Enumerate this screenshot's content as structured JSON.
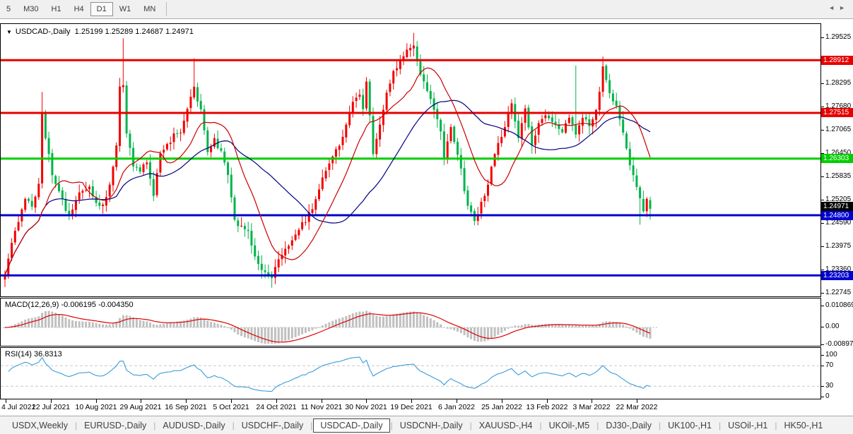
{
  "toolbar": {
    "timeframes": [
      {
        "label": "5",
        "active": false
      },
      {
        "label": "M30",
        "active": false
      },
      {
        "label": "H1",
        "active": false
      },
      {
        "label": "H4",
        "active": false
      },
      {
        "label": "D1",
        "active": true
      },
      {
        "label": "W1",
        "active": false
      },
      {
        "label": "MN",
        "active": false
      }
    ]
  },
  "window": {
    "dropdown_icon": "▼",
    "title_symbol": "USDCAD-,Daily",
    "title_ohlc": "1.25199 1.25289 1.24687 1.24971"
  },
  "chart_data": {
    "type": "candlestick",
    "symbol": "USDCAD-",
    "timeframe": "Daily",
    "current_bar": {
      "open": 1.25199,
      "high": 1.25289,
      "low": 1.24687,
      "close": 1.24971
    },
    "up_color": "#F20000",
    "down_color": "#00B44A",
    "price_axis": {
      "ticks": [
        "1.29525",
        "1.28295",
        "1.27680",
        "1.27065",
        "1.26450",
        "1.25835",
        "1.25205",
        "1.24590",
        "1.23975",
        "1.23360",
        "1.22745"
      ],
      "highlight_labels": [
        {
          "text": "1.28912",
          "price": 1.28912,
          "bg": "#E60000",
          "current": false
        },
        {
          "text": "1.27515",
          "price": 1.27515,
          "bg": "#E60000",
          "current": false
        },
        {
          "text": "1.26303",
          "price": 1.26303,
          "bg": "#00CE00",
          "current": false
        },
        {
          "text": "1.24971",
          "price": 1.24971,
          "bg": "#000000",
          "current": true
        },
        {
          "text": "1.24800",
          "price": 1.248,
          "bg": "#0000CE",
          "current": false
        },
        {
          "text": "1.23203",
          "price": 1.23203,
          "bg": "#0000CE",
          "current": false
        }
      ]
    },
    "levels": [
      {
        "price": 1.28912,
        "color": "#E60000"
      },
      {
        "price": 1.27515,
        "color": "#E60000"
      },
      {
        "price": 1.26303,
        "color": "#00CE00"
      },
      {
        "price": 1.248,
        "color": "#0000CE"
      },
      {
        "price": 1.23203,
        "color": "#0000CE"
      }
    ],
    "x_axis_dates": [
      "4 Jul 2021",
      "22 Jul 2021",
      "10 Aug 2021",
      "29 Aug 2021",
      "16 Sep 2021",
      "5 Oct 2021",
      "24 Oct 2021",
      "11 Nov 2021",
      "30 Nov 2021",
      "19 Dec 2021",
      "6 Jan 2022",
      "25 Jan 2022",
      "13 Feb 2022",
      "3 Mar 2022",
      "22 Mar 2022"
    ],
    "price_path_keyframes": [
      [
        0,
        1.232
      ],
      [
        2,
        1.2405
      ],
      [
        4,
        1.2462
      ],
      [
        6,
        1.253
      ],
      [
        8,
        1.2498
      ],
      [
        10,
        1.2562
      ],
      [
        11,
        1.2755
      ],
      [
        12,
        1.2688
      ],
      [
        14,
        1.2592
      ],
      [
        17,
        1.252
      ],
      [
        19,
        1.2472
      ],
      [
        22,
        1.2538
      ],
      [
        25,
        1.2556
      ],
      [
        27,
        1.2514
      ],
      [
        29,
        1.2504
      ],
      [
        31,
        1.2556
      ],
      [
        33,
        1.2662
      ],
      [
        34,
        1.2828
      ],
      [
        35,
        1.2818
      ],
      [
        36,
        1.27
      ],
      [
        38,
        1.2612
      ],
      [
        40,
        1.2598
      ],
      [
        42,
        1.2626
      ],
      [
        44,
        1.2532
      ],
      [
        46,
        1.2642
      ],
      [
        48,
        1.2664
      ],
      [
        50,
        1.269
      ],
      [
        52,
        1.2694
      ],
      [
        54,
        1.2764
      ],
      [
        56,
        1.2818
      ],
      [
        58,
        1.2758
      ],
      [
        60,
        1.2648
      ],
      [
        62,
        1.2684
      ],
      [
        64,
        1.2646
      ],
      [
        66,
        1.2584
      ],
      [
        68,
        1.2464
      ],
      [
        70,
        1.245
      ],
      [
        72,
        1.2438
      ],
      [
        74,
        1.2368
      ],
      [
        76,
        1.2334
      ],
      [
        79,
        1.2308
      ],
      [
        81,
        1.2368
      ],
      [
        83,
        1.2388
      ],
      [
        85,
        1.2408
      ],
      [
        87,
        1.2446
      ],
      [
        89,
        1.2468
      ],
      [
        91,
        1.2498
      ],
      [
        93,
        1.2548
      ],
      [
        95,
        1.2604
      ],
      [
        97,
        1.2638
      ],
      [
        99,
        1.2664
      ],
      [
        101,
        1.2714
      ],
      [
        103,
        1.2786
      ],
      [
        105,
        1.2806
      ],
      [
        106,
        1.2768
      ],
      [
        107,
        1.2838
      ],
      [
        109,
        1.2648
      ],
      [
        111,
        1.2718
      ],
      [
        113,
        1.2806
      ],
      [
        115,
        1.2866
      ],
      [
        117,
        1.2886
      ],
      [
        119,
        1.2918
      ],
      [
        121,
        1.2924
      ],
      [
        123,
        1.2854
      ],
      [
        126,
        1.2788
      ],
      [
        129,
        1.2698
      ],
      [
        130,
        1.2636
      ],
      [
        132,
        1.2708
      ],
      [
        134,
        1.2644
      ],
      [
        137,
        1.2504
      ],
      [
        139,
        1.2464
      ],
      [
        141,
        1.2514
      ],
      [
        143,
        1.2558
      ],
      [
        145,
        1.2648
      ],
      [
        148,
        1.2718
      ],
      [
        150,
        1.2778
      ],
      [
        152,
        1.2688
      ],
      [
        154,
        1.2758
      ],
      [
        156,
        1.2668
      ],
      [
        158,
        1.2728
      ],
      [
        160,
        1.2748
      ],
      [
        163,
        1.2716
      ],
      [
        165,
        1.2698
      ],
      [
        167,
        1.2744
      ],
      [
        169,
        1.2698
      ],
      [
        171,
        1.2744
      ],
      [
        173,
        1.2714
      ],
      [
        175,
        1.2758
      ],
      [
        177,
        1.2868
      ],
      [
        179,
        1.2798
      ],
      [
        181,
        1.2768
      ],
      [
        183,
        1.2698
      ],
      [
        185,
        1.2618
      ],
      [
        187,
        1.2556
      ],
      [
        189,
        1.2492
      ],
      [
        190,
        1.252
      ],
      [
        191,
        1.24971
      ]
    ],
    "wick_overrides": {
      "11": {
        "high": 1.2807
      },
      "35": {
        "high": 1.2949
      },
      "56": {
        "high": 1.2896
      },
      "79": {
        "low": 1.2288
      },
      "121": {
        "high": 1.2964
      },
      "139": {
        "low": 1.2453
      },
      "169": {
        "high": 1.2877
      },
      "177": {
        "high": 1.2901
      },
      "188": {
        "low": 1.2455
      }
    },
    "moving_averages": [
      {
        "name": "fast",
        "period": 13,
        "color": "#C80000"
      },
      {
        "name": "slow",
        "period": 34,
        "color": "#000080"
      }
    ],
    "macd": {
      "name": "MACD(12,26,9)",
      "values_text": "-0.006195 -0.004350",
      "value_main": -0.006195,
      "value_signal": -0.00435,
      "params": {
        "fast": 12,
        "slow": 26,
        "signal": 9
      },
      "axis_ticks": [
        "0.010869",
        "0.00",
        "-0.008974"
      ],
      "histogram_color": "#C0C0C0",
      "signal_color": "#DE0000"
    },
    "rsi": {
      "name": "RSI(14)",
      "value": "36.8313",
      "period": 14,
      "axis_ticks": [
        "100",
        "70",
        "30",
        "0"
      ],
      "levels": [
        70,
        30
      ],
      "line_color": "#3B9CD9"
    }
  },
  "tabs": {
    "items": [
      {
        "label": "USDX,Weekly",
        "active": false
      },
      {
        "label": "EURUSD-,Daily",
        "active": false
      },
      {
        "label": "AUDUSD-,Daily",
        "active": false
      },
      {
        "label": "USDCHF-,Daily",
        "active": false
      },
      {
        "label": "USDCAD-,Daily",
        "active": true
      },
      {
        "label": "USDCNH-,Daily",
        "active": false
      },
      {
        "label": "XAUUSD-,H4",
        "active": false
      },
      {
        "label": "UKOil-,M5",
        "active": false
      },
      {
        "label": "DJ30-,Daily",
        "active": false
      },
      {
        "label": "UK100-,H1",
        "active": false
      },
      {
        "label": "USOil-,H1",
        "active": false
      },
      {
        "label": "HK50-,H1",
        "active": false
      }
    ],
    "left_arrow": "◄",
    "right_arrow": "►"
  }
}
